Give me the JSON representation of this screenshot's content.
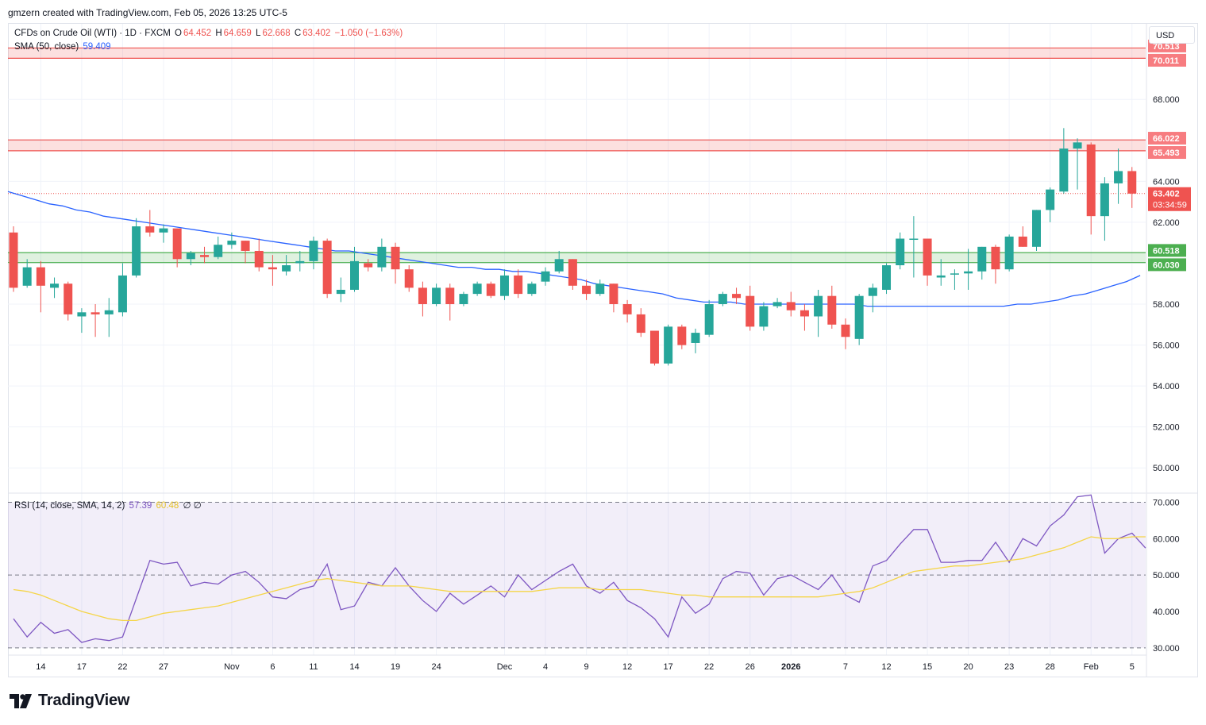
{
  "header": {
    "attribution": "gmzern created with TradingView.com, Feb 05, 2026 13:25 UTC-5"
  },
  "legend": {
    "symbol": "CFDs on Crude Oil (WTI) · 1D · FXCM",
    "open_label": "O",
    "open": "64.452",
    "high_label": "H",
    "high": "64.659",
    "low_label": "L",
    "low": "62.668",
    "close_label": "C",
    "close": "63.402",
    "change": "−1.050 (−1.63%)",
    "sma_label": "SMA (50, close)",
    "sma_value": "59.409",
    "rsi_label": "RSI (14, close, SMA, 14, 2)",
    "rsi_value": "57.39",
    "rsi_sma_value": "60.48",
    "rsi_extra": "∅ ∅"
  },
  "currency": "USD",
  "brand": {
    "name": "TradingView",
    "icon": "tradingview-logo-icon"
  },
  "colors": {
    "up": "#26a69a",
    "down": "#ef5350",
    "sma": "#2962ff",
    "rsi": "#7e57c2",
    "rsi_sma": "#f5d547",
    "resistance_zone": "#ef5350",
    "support_zone": "#4caf50",
    "rsi_band": "#7e57c2"
  },
  "chart_data": [
    {
      "type": "candlestick",
      "title": "CFDs on Crude Oil (WTI) · 1D · FXCM",
      "ylim": [
        49,
        71.5
      ],
      "y_ticks": [
        50,
        52,
        54,
        56,
        58,
        60,
        62,
        64,
        66,
        68
      ],
      "y_tick_labels": [
        "50.000",
        "52.000",
        "54.000",
        "56.000",
        "58.000",
        "60.000",
        "62.000",
        "64.000",
        "66.000",
        "68.000"
      ],
      "x_tick_labels": [
        "14",
        "17",
        "22",
        "27",
        "Nov",
        "6",
        "11",
        "14",
        "19",
        "24",
        "Dec",
        "4",
        "9",
        "12",
        "17",
        "22",
        "26",
        "2026",
        "7",
        "12",
        "15",
        "20",
        "23",
        "28",
        "Feb",
        "5"
      ],
      "x_tick_index": [
        2,
        5,
        8,
        11,
        16,
        19,
        22,
        25,
        28,
        31,
        36,
        39,
        42,
        45,
        48,
        51,
        54,
        57,
        61,
        64,
        67,
        70,
        73,
        76,
        79,
        82
      ],
      "zones": [
        {
          "low": 70.011,
          "high": 70.513,
          "low_label": "70.011",
          "high_label": "70.513",
          "kind": "resistance"
        },
        {
          "low": 65.493,
          "high": 66.022,
          "low_label": "65.493",
          "high_label": "66.022",
          "kind": "resistance"
        },
        {
          "low": 60.03,
          "high": 60.518,
          "low_label": "60.030",
          "high_label": "60.518",
          "kind": "support"
        }
      ],
      "last_price": 63.402,
      "last_price_label": "63.402",
      "countdown": "03:34:59",
      "candles": [
        [
          61.5,
          61.8,
          58.6,
          58.8
        ],
        [
          58.9,
          60.2,
          58.8,
          59.8
        ],
        [
          59.8,
          60.1,
          57.6,
          58.9
        ],
        [
          58.8,
          59.3,
          58.3,
          59.0
        ],
        [
          59.0,
          59.1,
          57.2,
          57.5
        ],
        [
          57.4,
          57.8,
          56.6,
          57.6
        ],
        [
          57.6,
          58.0,
          56.4,
          57.5
        ],
        [
          57.5,
          58.3,
          56.4,
          57.7
        ],
        [
          57.6,
          60.0,
          57.4,
          59.4
        ],
        [
          59.4,
          62.2,
          59.3,
          61.8
        ],
        [
          61.8,
          62.6,
          61.3,
          61.5
        ],
        [
          61.5,
          61.9,
          61.0,
          61.7
        ],
        [
          61.7,
          61.7,
          59.8,
          60.2
        ],
        [
          60.2,
          60.6,
          59.9,
          60.5
        ],
        [
          60.4,
          60.8,
          60.0,
          60.3
        ],
        [
          60.3,
          61.3,
          60.2,
          60.9
        ],
        [
          60.9,
          61.5,
          60.7,
          61.1
        ],
        [
          61.1,
          61.1,
          60.0,
          60.6
        ],
        [
          60.6,
          61.2,
          59.6,
          59.8
        ],
        [
          59.8,
          60.4,
          58.9,
          59.7
        ],
        [
          59.6,
          60.4,
          59.4,
          59.9
        ],
        [
          60.0,
          60.6,
          59.6,
          60.1
        ],
        [
          60.1,
          61.3,
          59.7,
          61.1
        ],
        [
          61.1,
          61.2,
          58.3,
          58.5
        ],
        [
          58.5,
          59.3,
          58.1,
          58.7
        ],
        [
          58.7,
          60.8,
          58.6,
          60.1
        ],
        [
          60.0,
          60.2,
          59.6,
          59.8
        ],
        [
          59.8,
          61.2,
          59.6,
          60.8
        ],
        [
          60.8,
          61.0,
          59.0,
          59.7
        ],
        [
          59.7,
          59.9,
          58.6,
          58.8
        ],
        [
          58.8,
          59.1,
          57.4,
          58.0
        ],
        [
          58.0,
          59.0,
          57.9,
          58.8
        ],
        [
          58.8,
          59.0,
          57.2,
          58.0
        ],
        [
          58.0,
          58.6,
          57.9,
          58.5
        ],
        [
          58.5,
          59.1,
          58.4,
          59.0
        ],
        [
          59.0,
          59.1,
          58.3,
          58.4
        ],
        [
          58.4,
          59.7,
          58.2,
          59.4
        ],
        [
          59.4,
          59.7,
          58.3,
          58.5
        ],
        [
          58.5,
          59.1,
          58.4,
          59.0
        ],
        [
          59.1,
          59.8,
          58.9,
          59.6
        ],
        [
          59.6,
          60.6,
          59.5,
          60.2
        ],
        [
          60.2,
          60.2,
          58.7,
          58.9
        ],
        [
          58.9,
          59.2,
          58.2,
          58.5
        ],
        [
          58.5,
          59.2,
          58.4,
          59.0
        ],
        [
          59.0,
          59.0,
          57.6,
          58.0
        ],
        [
          58.0,
          58.2,
          57.1,
          57.5
        ],
        [
          57.5,
          57.8,
          56.4,
          56.6
        ],
        [
          56.7,
          56.7,
          55.0,
          55.1
        ],
        [
          55.1,
          57.0,
          55.0,
          56.9
        ],
        [
          56.9,
          57.0,
          55.8,
          56.0
        ],
        [
          56.1,
          56.8,
          55.6,
          56.6
        ],
        [
          56.5,
          58.2,
          56.4,
          58.0
        ],
        [
          58.0,
          58.6,
          57.9,
          58.5
        ],
        [
          58.5,
          58.8,
          58.0,
          58.3
        ],
        [
          58.4,
          58.9,
          56.7,
          56.9
        ],
        [
          56.9,
          58.1,
          56.7,
          57.9
        ],
        [
          57.9,
          58.3,
          57.8,
          58.1
        ],
        [
          58.1,
          58.6,
          57.4,
          57.7
        ],
        [
          57.7,
          58.0,
          56.7,
          57.4
        ],
        [
          57.4,
          58.7,
          56.4,
          58.4
        ],
        [
          58.4,
          58.9,
          56.8,
          57.0
        ],
        [
          57.0,
          57.3,
          55.8,
          56.4
        ],
        [
          56.3,
          58.5,
          56.0,
          58.4
        ],
        [
          58.4,
          59.0,
          57.6,
          58.8
        ],
        [
          58.7,
          60.0,
          58.5,
          59.9
        ],
        [
          59.9,
          61.5,
          59.7,
          61.2
        ],
        [
          61.2,
          62.3,
          59.3,
          61.2
        ],
        [
          61.2,
          61.2,
          58.9,
          59.4
        ],
        [
          59.3,
          60.2,
          58.9,
          59.4
        ],
        [
          59.5,
          59.7,
          58.7,
          59.5
        ],
        [
          59.5,
          60.7,
          58.7,
          59.6
        ],
        [
          59.6,
          60.8,
          59.2,
          60.8
        ],
        [
          60.8,
          60.9,
          59.0,
          59.7
        ],
        [
          59.7,
          61.4,
          59.6,
          61.3
        ],
        [
          61.3,
          61.8,
          60.8,
          60.8
        ],
        [
          60.8,
          62.6,
          60.6,
          62.6
        ],
        [
          62.6,
          63.7,
          62.0,
          63.6
        ],
        [
          63.5,
          66.6,
          63.4,
          65.6
        ],
        [
          65.6,
          66.1,
          63.6,
          65.9
        ],
        [
          65.8,
          65.9,
          61.4,
          62.3
        ],
        [
          62.3,
          64.2,
          61.1,
          63.9
        ],
        [
          63.9,
          65.6,
          62.9,
          64.5
        ],
        [
          64.5,
          64.7,
          62.7,
          63.4
        ]
      ],
      "sma": [
        63.5,
        63.3,
        63.1,
        62.9,
        62.8,
        62.6,
        62.5,
        62.3,
        62.2,
        62.1,
        62.0,
        61.9,
        61.8,
        61.7,
        61.6,
        61.5,
        61.4,
        61.3,
        61.2,
        61.1,
        61.0,
        60.9,
        60.8,
        60.7,
        60.6,
        60.6,
        60.5,
        60.4,
        60.3,
        60.2,
        60.1,
        60.0,
        59.9,
        59.8,
        59.8,
        59.7,
        59.7,
        59.6,
        59.6,
        59.5,
        59.4,
        59.3,
        59.2,
        59.0,
        58.9,
        58.8,
        58.7,
        58.6,
        58.5,
        58.3,
        58.2,
        58.1,
        58.1,
        58.1,
        58.0,
        58.0,
        58.0,
        58.0,
        58.0,
        58.0,
        58.0,
        58.0,
        58.0,
        57.9,
        57.9,
        57.9,
        57.9,
        57.9,
        57.9,
        57.9,
        57.9,
        57.9,
        57.9,
        57.9,
        58.0,
        58.0,
        58.1,
        58.2,
        58.4,
        58.5,
        58.7,
        58.9,
        59.1,
        59.4
      ]
    },
    {
      "type": "line",
      "title": "RSI (14, close, SMA, 14, 2)",
      "ylim": [
        28,
        72.5
      ],
      "y_ticks": [
        30,
        40,
        50,
        60,
        70
      ],
      "y_tick_labels": [
        "30.000",
        "40.000",
        "50.000",
        "60.000",
        "70.000"
      ],
      "band": [
        30,
        70
      ],
      "mid_line": 50,
      "series": [
        {
          "name": "RSI",
          "values": [
            38.0,
            33.0,
            37.0,
            34.0,
            35.0,
            31.5,
            32.5,
            32.0,
            33.0,
            43.5,
            54.0,
            53.0,
            53.5,
            47.0,
            48.0,
            47.5,
            50.0,
            51.0,
            48.0,
            44.0,
            43.5,
            46.0,
            47.0,
            53.0,
            40.5,
            41.5,
            48.0,
            47.0,
            52.0,
            47.0,
            43.0,
            40.0,
            45.0,
            42.0,
            44.5,
            47.0,
            44.0,
            50.0,
            46.0,
            48.5,
            51.0,
            53.0,
            47.0,
            45.0,
            48.0,
            43.0,
            41.0,
            38.0,
            33.0,
            44.0,
            39.5,
            42.0,
            49.0,
            51.0,
            50.5,
            44.5,
            49.0,
            50.0,
            48.0,
            46.0,
            50.0,
            44.5,
            42.5,
            52.5,
            54.0,
            58.5,
            62.5,
            62.5,
            53.5,
            53.5,
            54.0,
            54.0,
            59.0,
            53.5,
            60.0,
            58.0,
            63.5,
            66.5,
            71.5,
            72.0,
            56.0,
            60.0,
            61.5,
            57.4
          ]
        },
        {
          "name": "RSI-based MA",
          "values": [
            46.0,
            45.5,
            44.5,
            43.0,
            41.5,
            40.0,
            39.0,
            38.0,
            37.5,
            37.5,
            38.5,
            39.5,
            40.0,
            40.5,
            41.0,
            41.5,
            42.5,
            43.5,
            44.5,
            45.5,
            46.5,
            47.5,
            48.5,
            49.0,
            48.5,
            48.0,
            47.5,
            47.0,
            47.0,
            47.0,
            46.5,
            46.0,
            45.5,
            45.5,
            45.5,
            45.5,
            45.5,
            45.5,
            45.5,
            46.0,
            46.5,
            46.5,
            46.5,
            46.0,
            46.0,
            46.0,
            46.0,
            45.5,
            45.0,
            44.5,
            44.5,
            44.0,
            44.0,
            44.0,
            44.0,
            44.0,
            44.0,
            44.0,
            44.0,
            44.0,
            44.5,
            45.0,
            45.5,
            46.5,
            48.0,
            49.5,
            51.0,
            51.5,
            52.0,
            52.5,
            52.5,
            53.0,
            53.5,
            54.0,
            54.5,
            55.5,
            56.5,
            57.5,
            59.0,
            60.5,
            60.0,
            60.0,
            60.5,
            60.5
          ]
        }
      ]
    }
  ]
}
